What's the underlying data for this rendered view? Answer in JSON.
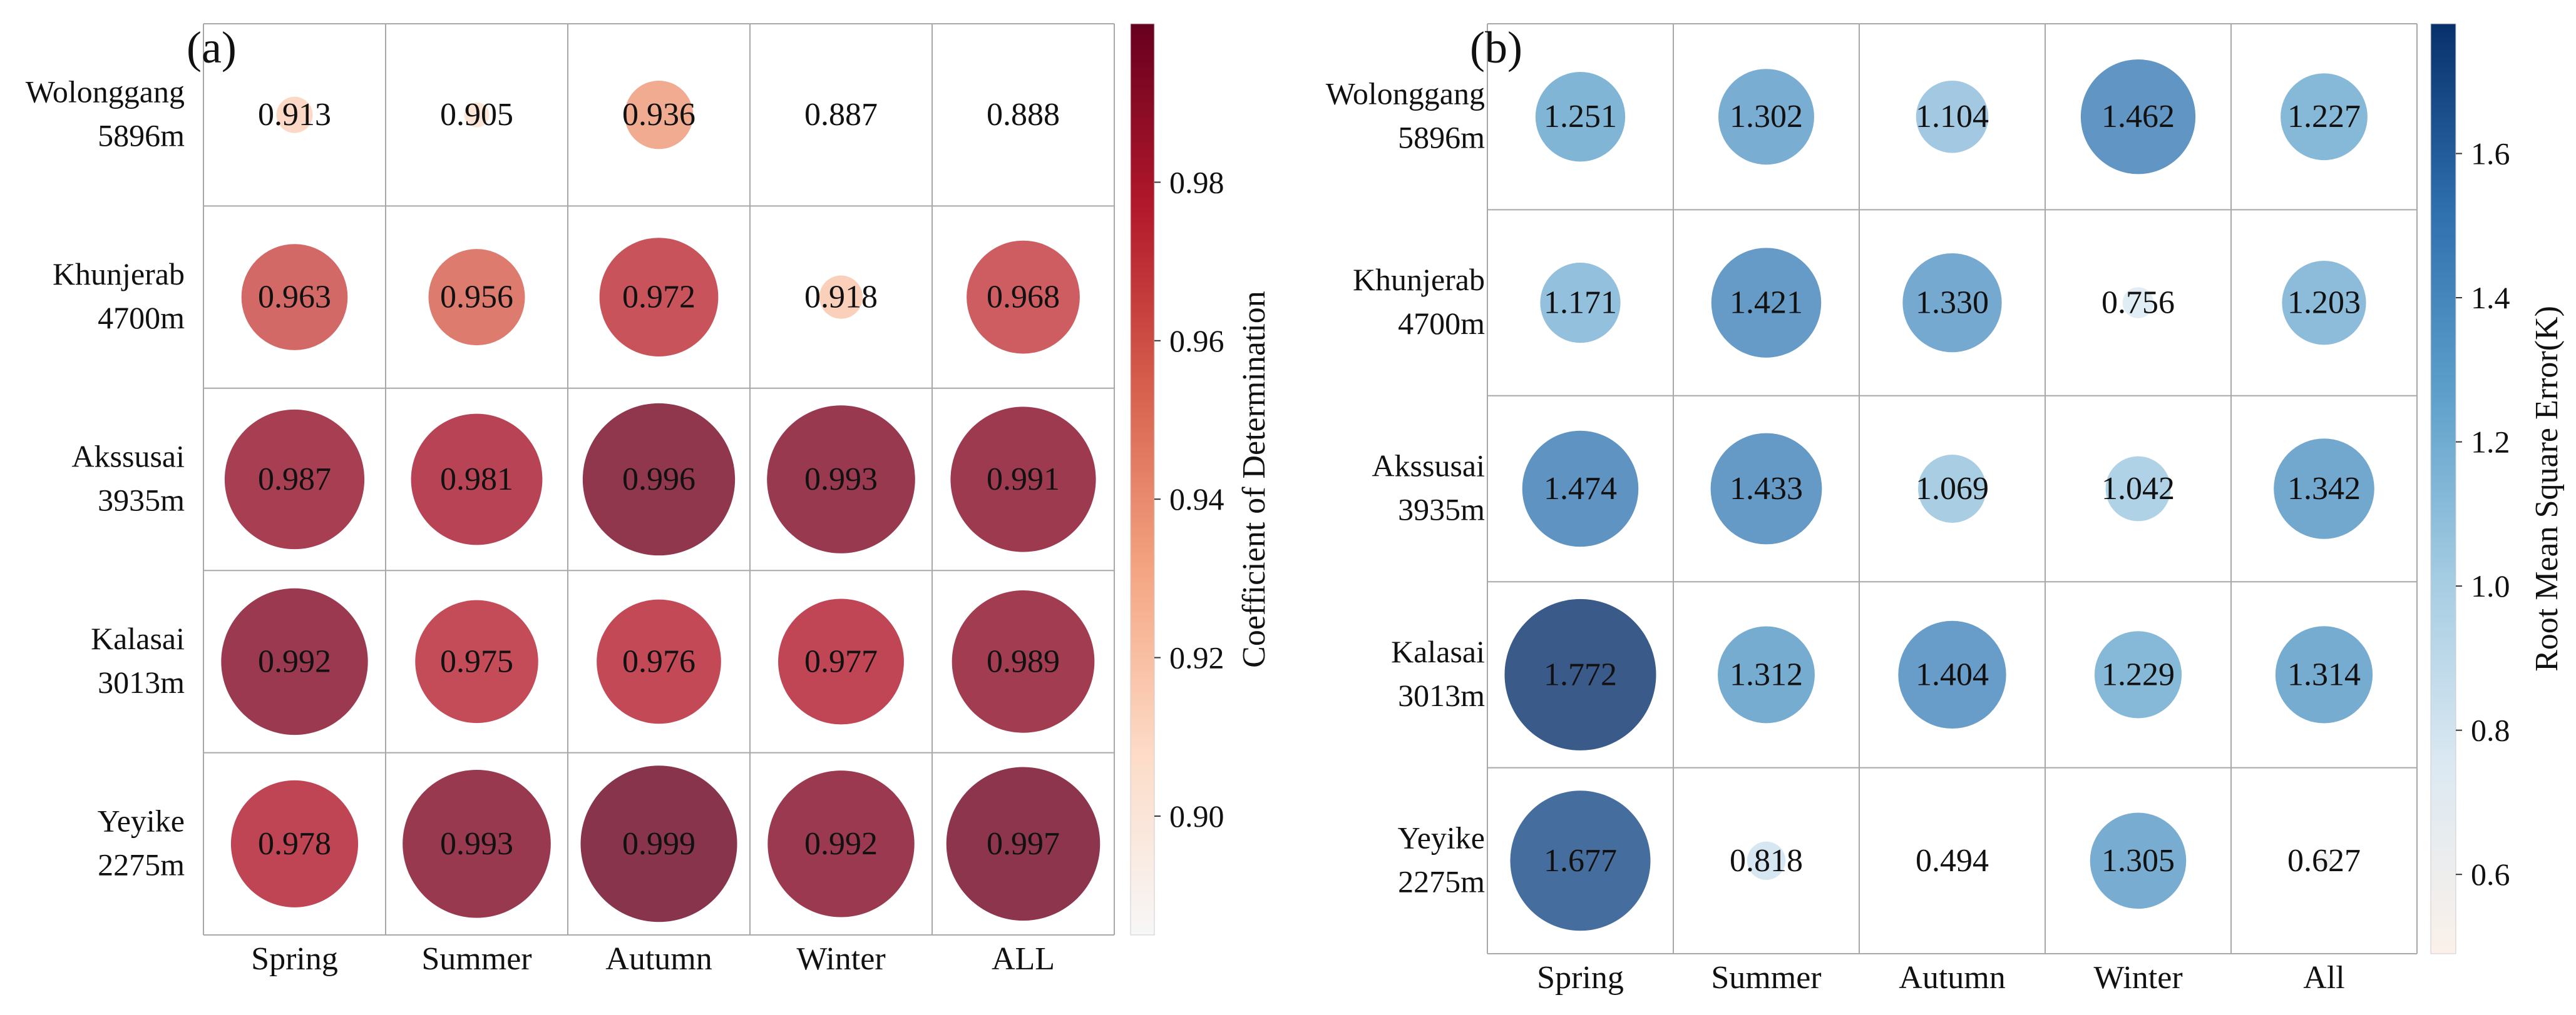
{
  "chart_data": [
    {
      "panel_label": "(a)",
      "type": "heatmap",
      "rows": [
        {
          "station": "Wolonggang",
          "elevation": "5896m"
        },
        {
          "station": "Khunjerab",
          "elevation": "4700m"
        },
        {
          "station": "Akssusai",
          "elevation": "3935m"
        },
        {
          "station": "Kalasai",
          "elevation": "3013m"
        },
        {
          "station": "Yeyike",
          "elevation": "2275m"
        }
      ],
      "columns": [
        "Spring",
        "Summer",
        "Autumn",
        "Winter",
        "ALL"
      ],
      "values": [
        [
          0.913,
          0.905,
          0.936,
          0.887,
          0.888
        ],
        [
          0.963,
          0.956,
          0.972,
          0.918,
          0.968
        ],
        [
          0.987,
          0.981,
          0.996,
          0.993,
          0.991
        ],
        [
          0.992,
          0.975,
          0.976,
          0.977,
          0.989
        ],
        [
          0.978,
          0.993,
          0.999,
          0.992,
          0.997
        ]
      ],
      "value_labels": [
        [
          "0.913",
          "0.905",
          "0.936",
          "0.887",
          "0.888"
        ],
        [
          "0.963",
          "0.956",
          "0.972",
          "0.918",
          "0.968"
        ],
        [
          "0.987",
          "0.981",
          "0.996",
          "0.993",
          "0.991"
        ],
        [
          "0.992",
          "0.975",
          "0.976",
          "0.977",
          "0.989"
        ],
        [
          "0.978",
          "0.993",
          "0.999",
          "0.992",
          "0.997"
        ]
      ],
      "colorbar": {
        "label": "Coefficient of Determination",
        "range": [
          0.885,
          1.0
        ],
        "ticks": [
          0.9,
          0.92,
          0.94,
          0.96,
          0.98
        ],
        "tick_labels": [
          "0.90",
          "0.92",
          "0.94",
          "0.96",
          "0.98"
        ],
        "colormap": [
          "#f7f7f7",
          "#fddbc7",
          "#f4a582",
          "#d6604d",
          "#b2182b",
          "#67001f"
        ],
        "mark_opacity": 0.8
      }
    },
    {
      "panel_label": "(b)",
      "type": "heatmap",
      "rows": [
        {
          "station": "Wolonggang",
          "elevation": "5896m"
        },
        {
          "station": "Khunjerab",
          "elevation": "4700m"
        },
        {
          "station": "Akssusai",
          "elevation": "3935m"
        },
        {
          "station": "Kalasai",
          "elevation": "3013m"
        },
        {
          "station": "Yeyike",
          "elevation": "2275m"
        }
      ],
      "columns": [
        "Spring",
        "Summer",
        "Autumn",
        "Winter",
        "All"
      ],
      "values": [
        [
          1.251,
          1.302,
          1.104,
          1.462,
          1.227
        ],
        [
          1.171,
          1.421,
          1.33,
          0.756,
          1.203
        ],
        [
          1.474,
          1.433,
          1.069,
          1.042,
          1.342
        ],
        [
          1.772,
          1.312,
          1.404,
          1.229,
          1.314
        ],
        [
          1.677,
          0.818,
          0.494,
          1.305,
          0.627
        ]
      ],
      "value_labels": [
        [
          "1.251",
          "1.302",
          "1.104",
          "1.462",
          "1.227"
        ],
        [
          "1.171",
          "1.421",
          "1.330",
          "0.756",
          "1.203"
        ],
        [
          "1.474",
          "1.433",
          "1.069",
          "1.042",
          "1.342"
        ],
        [
          "1.772",
          "1.312",
          "1.404",
          "1.229",
          "1.314"
        ],
        [
          "1.677",
          "0.818",
          "0.494",
          "1.305",
          "0.627"
        ]
      ],
      "colorbar": {
        "label": "Root Mean Square Error(K)",
        "range": [
          0.49,
          1.78
        ],
        "ticks": [
          0.6,
          0.8,
          1.0,
          1.2,
          1.4,
          1.6
        ],
        "tick_labels": [
          "0.6",
          "0.8",
          "1.0",
          "1.2",
          "1.4",
          "1.6"
        ],
        "colormap": [
          "#fbf1ea",
          "#dce9f2",
          "#a6cde3",
          "#5ea0cb",
          "#2e6fae",
          "#08306b"
        ],
        "mark_opacity": 0.8
      }
    }
  ]
}
